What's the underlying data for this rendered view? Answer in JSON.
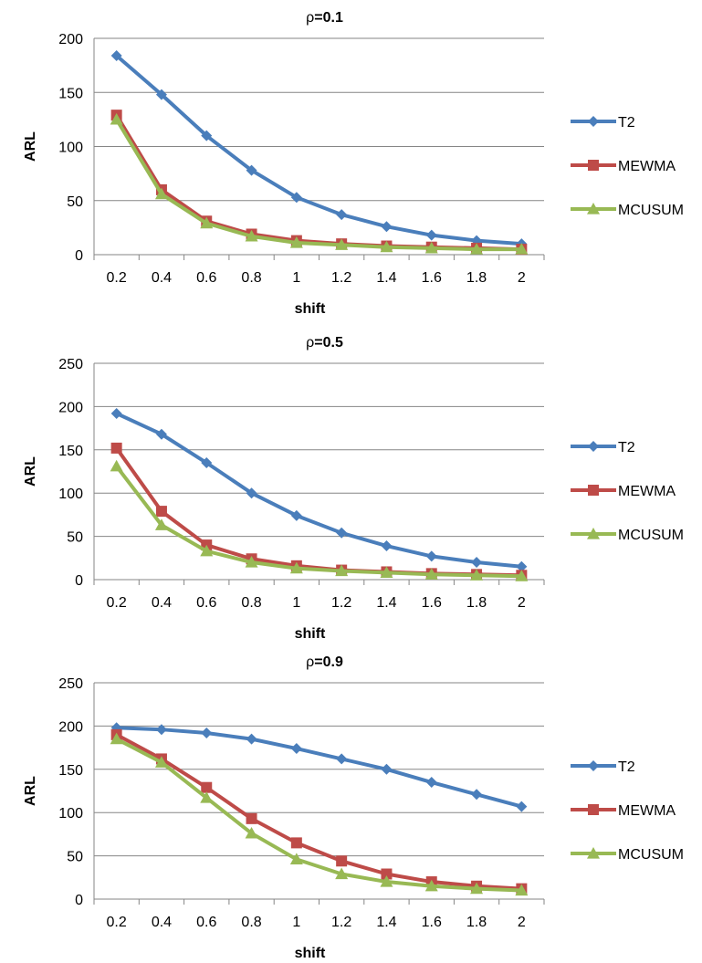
{
  "chart_data": [
    {
      "type": "line",
      "title_prefix": "ρ",
      "title_value": "=0.1",
      "xlabel": "shift",
      "ylabel": "ARL",
      "categories": [
        "0.2",
        "0.4",
        "0.6",
        "0.8",
        "1",
        "1.2",
        "1.4",
        "1.6",
        "1.8",
        "2"
      ],
      "ylim": [
        0,
        200
      ],
      "yticks": [
        0,
        50,
        100,
        150,
        200
      ],
      "grid": true,
      "legend_position": "right",
      "series": [
        {
          "name": "T2",
          "color": "#4a7ebb",
          "marker": "diamond",
          "values": [
            184,
            148,
            110,
            78,
            53,
            37,
            26,
            18,
            13,
            10
          ]
        },
        {
          "name": "MEWMA",
          "color": "#be4b48",
          "marker": "square",
          "values": [
            129,
            60,
            31,
            19,
            13,
            10,
            8,
            7,
            6,
            5
          ]
        },
        {
          "name": "MCUSUM",
          "color": "#98b954",
          "marker": "triangle",
          "values": [
            125,
            56,
            29,
            17,
            11,
            9,
            7,
            6,
            5,
            5
          ]
        }
      ]
    },
    {
      "type": "line",
      "title_prefix": "ρ",
      "title_value": "=0.5",
      "xlabel": "shift",
      "ylabel": "ARL",
      "categories": [
        "0.2",
        "0.4",
        "0.6",
        "0.8",
        "1",
        "1.2",
        "1.4",
        "1.6",
        "1.8",
        "2"
      ],
      "ylim": [
        0,
        250
      ],
      "yticks": [
        0,
        50,
        100,
        150,
        200,
        250
      ],
      "grid": true,
      "legend_position": "right",
      "series": [
        {
          "name": "T2",
          "color": "#4a7ebb",
          "marker": "diamond",
          "values": [
            192,
            168,
            135,
            100,
            74,
            54,
            39,
            27,
            20,
            15
          ]
        },
        {
          "name": "MEWMA",
          "color": "#be4b48",
          "marker": "square",
          "values": [
            152,
            79,
            40,
            24,
            16,
            11,
            9,
            7,
            6,
            5
          ]
        },
        {
          "name": "MCUSUM",
          "color": "#98b954",
          "marker": "triangle",
          "values": [
            131,
            63,
            33,
            20,
            13,
            10,
            8,
            6,
            5,
            4
          ]
        }
      ]
    },
    {
      "type": "line",
      "title_prefix": "ρ",
      "title_value": "=0.9",
      "xlabel": "shift",
      "ylabel": "ARL",
      "categories": [
        "0.2",
        "0.4",
        "0.6",
        "0.8",
        "1",
        "1.2",
        "1.4",
        "1.6",
        "1.8",
        "2"
      ],
      "ylim": [
        0,
        250
      ],
      "yticks": [
        0,
        50,
        100,
        150,
        200,
        250
      ],
      "grid": true,
      "legend_position": "right",
      "series": [
        {
          "name": "T2",
          "color": "#4a7ebb",
          "marker": "diamond",
          "values": [
            198,
            196,
            192,
            185,
            174,
            162,
            150,
            135,
            121,
            107
          ]
        },
        {
          "name": "MEWMA",
          "color": "#be4b48",
          "marker": "square",
          "values": [
            190,
            162,
            129,
            93,
            65,
            44,
            29,
            20,
            15,
            12
          ]
        },
        {
          "name": "MCUSUM",
          "color": "#98b954",
          "marker": "triangle",
          "values": [
            185,
            158,
            117,
            76,
            46,
            29,
            20,
            15,
            12,
            10
          ]
        }
      ]
    }
  ]
}
